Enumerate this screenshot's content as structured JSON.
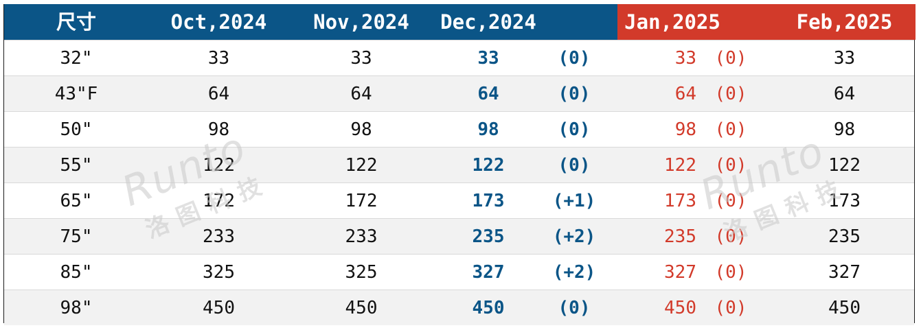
{
  "header": {
    "size": "尺寸",
    "oct": "Oct,2024",
    "nov": "Nov,2024",
    "dec": "Dec,2024",
    "jan": "Jan,2025",
    "feb": "Feb,2025"
  },
  "rows": [
    {
      "size": "32\"",
      "oct": "33",
      "nov": "33",
      "dec": "33",
      "dec_chg": "(0)",
      "jan": "33",
      "jan_chg": "(0)",
      "feb": "33"
    },
    {
      "size": "43\"F",
      "oct": "64",
      "nov": "64",
      "dec": "64",
      "dec_chg": "(0)",
      "jan": "64",
      "jan_chg": "(0)",
      "feb": "64"
    },
    {
      "size": "50\"",
      "oct": "98",
      "nov": "98",
      "dec": "98",
      "dec_chg": "(0)",
      "jan": "98",
      "jan_chg": "(0)",
      "feb": "98"
    },
    {
      "size": "55\"",
      "oct": "122",
      "nov": "122",
      "dec": "122",
      "dec_chg": "(0)",
      "jan": "122",
      "jan_chg": "(0)",
      "feb": "122"
    },
    {
      "size": "65\"",
      "oct": "172",
      "nov": "172",
      "dec": "173",
      "dec_chg": "(+1)",
      "jan": "173",
      "jan_chg": "(0)",
      "feb": "173"
    },
    {
      "size": "75\"",
      "oct": "233",
      "nov": "233",
      "dec": "235",
      "dec_chg": "(+2)",
      "jan": "235",
      "jan_chg": "(0)",
      "feb": "235"
    },
    {
      "size": "85\"",
      "oct": "325",
      "nov": "325",
      "dec": "327",
      "dec_chg": "(+2)",
      "jan": "327",
      "jan_chg": "(0)",
      "feb": "327"
    },
    {
      "size": "98\"",
      "oct": "450",
      "nov": "450",
      "dec": "450",
      "dec_chg": "(0)",
      "jan": "450",
      "jan_chg": "(0)",
      "feb": "450"
    }
  ],
  "watermark": {
    "latin": "Runto",
    "cjk": "洛图科技"
  },
  "colors": {
    "header_blue": "#0b5587",
    "header_red": "#d23a2a",
    "alt_row": "#f2f2f2"
  }
}
